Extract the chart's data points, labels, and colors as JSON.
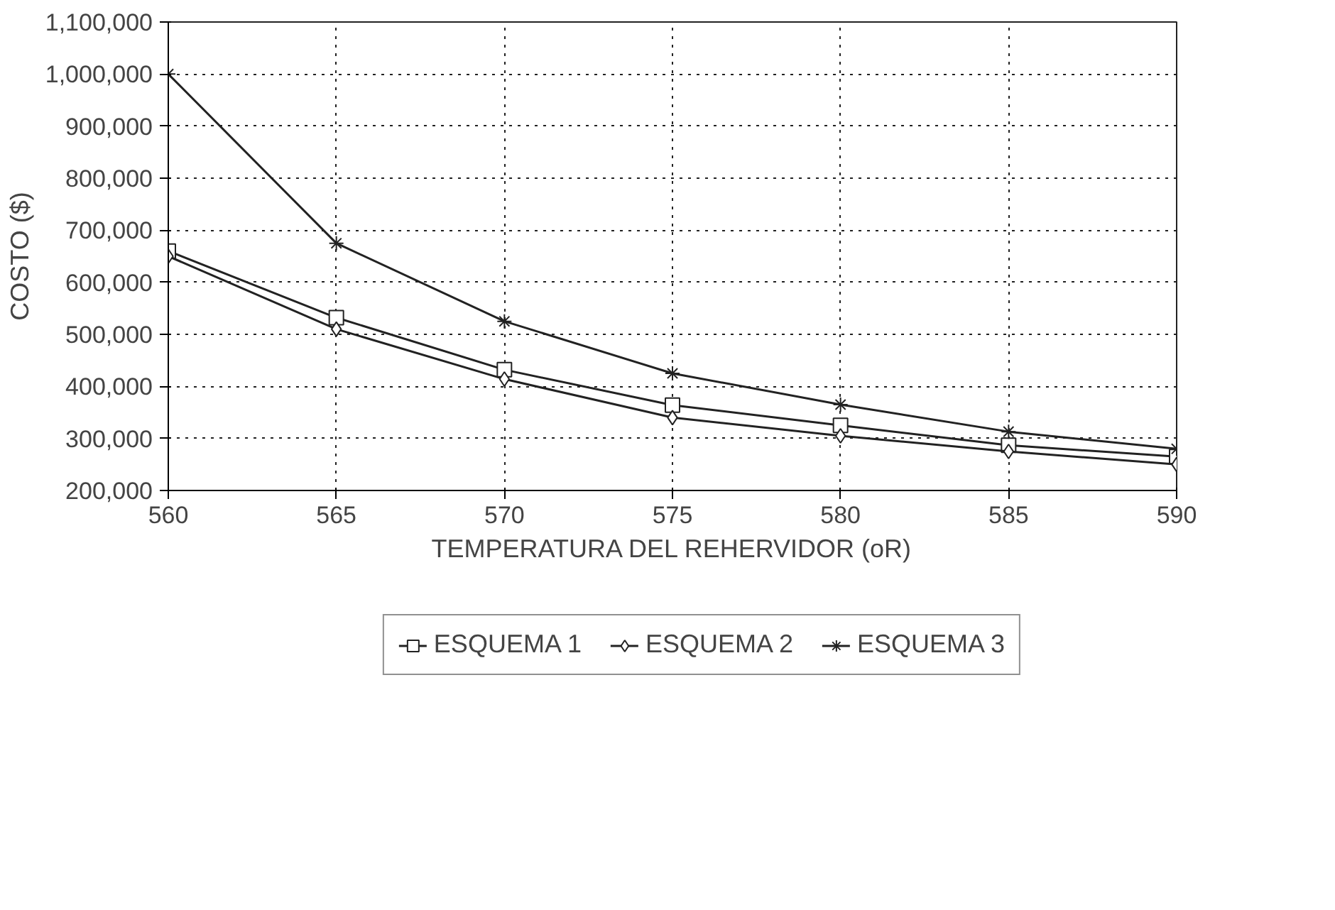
{
  "chart_data": {
    "type": "line",
    "xlabel": "TEMPERATURA DEL REHERVIDOR (oR)",
    "ylabel": "COSTO ($)",
    "x": [
      560,
      565,
      570,
      575,
      580,
      585,
      590
    ],
    "series": [
      {
        "name": "ESQUEMA 1",
        "color": "#222222",
        "marker": "square",
        "values": [
          660000,
          532000,
          432000,
          364000,
          325000,
          287000,
          265000
        ]
      },
      {
        "name": "ESQUEMA 2",
        "color": "#222222",
        "marker": "diamond",
        "values": [
          650000,
          510000,
          414000,
          340000,
          305000,
          275000,
          250000
        ]
      },
      {
        "name": "ESQUEMA 3",
        "color": "#222222",
        "marker": "cross",
        "values": [
          1000000,
          675000,
          525000,
          425000,
          365000,
          313000,
          280000
        ]
      }
    ],
    "xlim": [
      560,
      590
    ],
    "xticks": [
      560,
      565,
      570,
      575,
      580,
      585,
      590
    ],
    "ylim": [
      200000,
      1100000
    ],
    "yticks": [
      {
        "value": 200000,
        "label": "200,000"
      },
      {
        "value": 300000,
        "label": "300,000"
      },
      {
        "value": 400000,
        "label": "400,000"
      },
      {
        "value": 500000,
        "label": "500,000"
      },
      {
        "value": 600000,
        "label": "600,000"
      },
      {
        "value": 700000,
        "label": "700,000"
      },
      {
        "value": 800000,
        "label": "800,000"
      },
      {
        "value": 900000,
        "label": "900,000"
      },
      {
        "value": 1000000,
        "label": "1,000,000"
      },
      {
        "value": 1100000,
        "label": "1,100,000"
      }
    ],
    "grid": true,
    "legend": "bottom",
    "line_style": "solid"
  }
}
